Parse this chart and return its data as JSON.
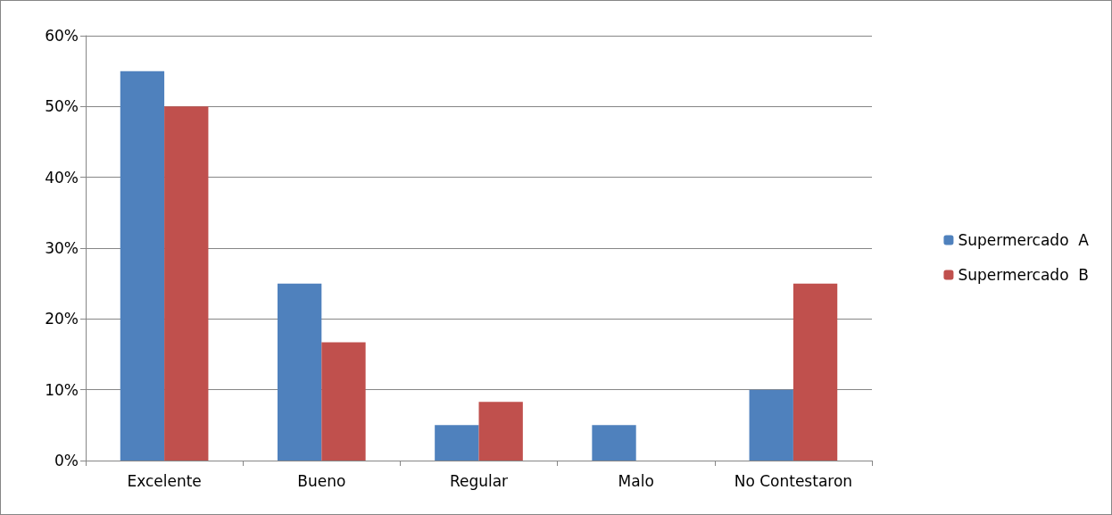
{
  "chart_data": {
    "type": "bar",
    "categories": [
      "Excelente",
      "Bueno",
      "Regular",
      "Malo",
      "No Contestaron"
    ],
    "series": [
      {
        "name": "Supermercado  A",
        "color": "#4f81bd",
        "values": [
          55,
          25,
          5,
          5,
          10
        ]
      },
      {
        "name": "Supermercado  B",
        "color": "#c0504d",
        "values": [
          50,
          16.7,
          8.3,
          0,
          25
        ]
      }
    ],
    "ylim": [
      0,
      60
    ],
    "yticks": [
      {
        "value": 0,
        "label": "0%"
      },
      {
        "value": 10,
        "label": "10%"
      },
      {
        "value": 20,
        "label": "20%"
      },
      {
        "value": 30,
        "label": "30%"
      },
      {
        "value": 40,
        "label": "40%"
      },
      {
        "value": 50,
        "label": "50%"
      },
      {
        "value": 60,
        "label": "60%"
      }
    ],
    "grid": "y",
    "legend": "right"
  }
}
